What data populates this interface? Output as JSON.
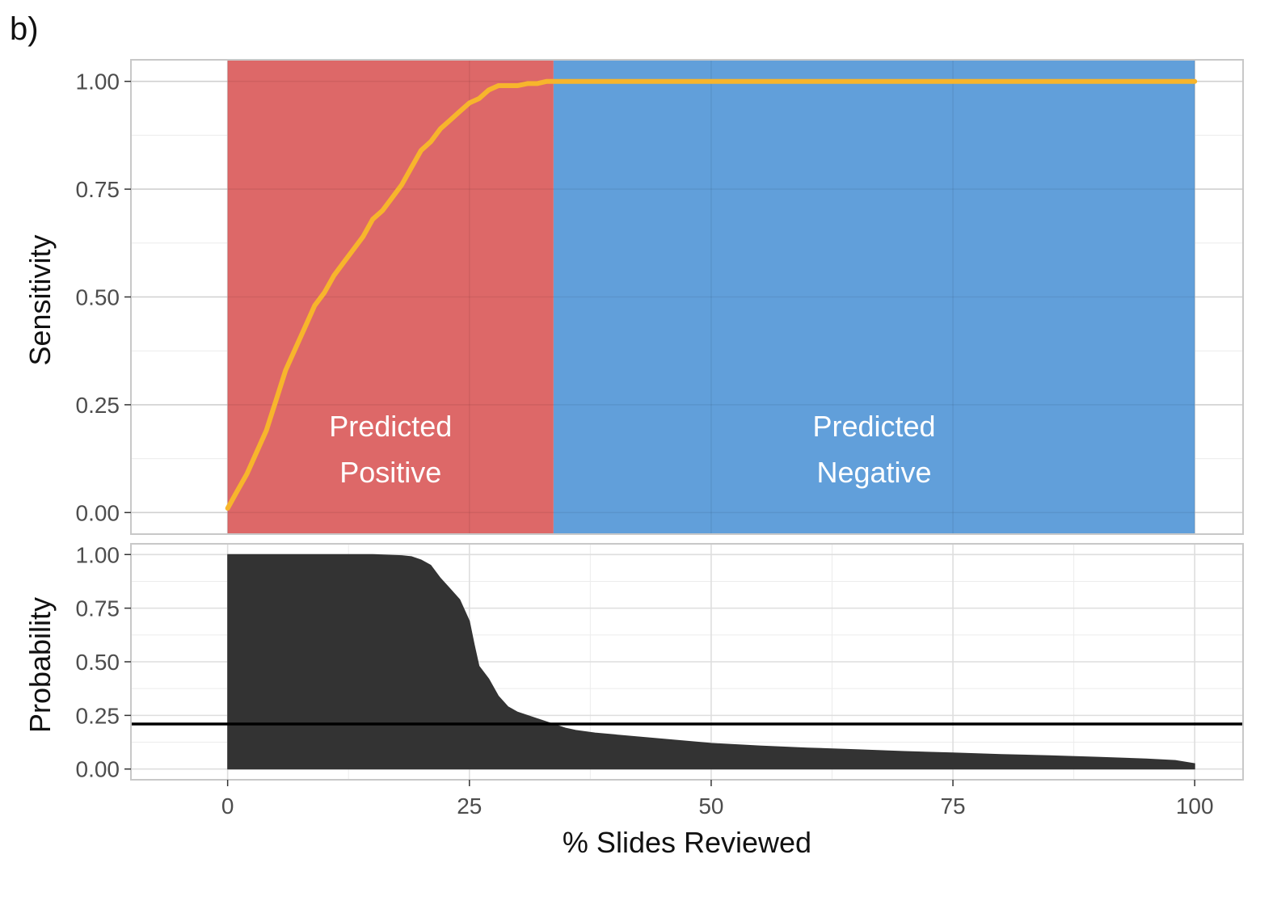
{
  "figure_label": "b)",
  "chart_data": [
    {
      "type": "line",
      "ylabel": "Sensitivity",
      "xlim": [
        -10,
        105
      ],
      "ylim": [
        -0.05,
        1.05
      ],
      "x_ticks": [
        0,
        25,
        50,
        75,
        100
      ],
      "y_ticks": [
        "0.00",
        "0.25",
        "0.50",
        "0.75",
        "1.00"
      ],
      "grid": true,
      "regions": [
        {
          "label": [
            "Predicted",
            "Positive"
          ],
          "x_start": 0,
          "x_end": 33.7,
          "color": "#dc6262"
        },
        {
          "label": [
            "Predicted",
            "Negative"
          ],
          "x_start": 33.7,
          "x_end": 100,
          "color": "#5b9bd8"
        }
      ],
      "series": [
        {
          "color": "#f7b52c",
          "x": [
            0,
            1,
            2,
            3,
            4,
            5,
            6,
            7,
            8,
            9,
            10,
            11,
            12,
            13,
            14,
            15,
            16,
            17,
            18,
            19,
            20,
            21,
            22,
            23,
            24,
            25,
            26,
            27,
            28,
            29,
            30,
            31,
            32,
            33,
            33.7,
            40,
            50,
            60,
            70,
            80,
            90,
            100
          ],
          "y": [
            0.01,
            0.05,
            0.09,
            0.14,
            0.19,
            0.26,
            0.33,
            0.38,
            0.43,
            0.48,
            0.51,
            0.55,
            0.58,
            0.61,
            0.64,
            0.68,
            0.7,
            0.73,
            0.76,
            0.8,
            0.84,
            0.86,
            0.89,
            0.91,
            0.93,
            0.95,
            0.96,
            0.98,
            0.99,
            0.99,
            0.99,
            0.995,
            0.995,
            1.0,
            1.0,
            1.0,
            1.0,
            1.0,
            1.0,
            1.0,
            1.0,
            1.0
          ]
        }
      ]
    },
    {
      "type": "area",
      "xlabel": "% Slides Reviewed",
      "ylabel": "Probability",
      "xlim": [
        -10,
        105
      ],
      "ylim": [
        -0.05,
        1.05
      ],
      "x_ticks": [
        "0",
        "25",
        "50",
        "75",
        "100"
      ],
      "y_ticks": [
        "0.00",
        "0.25",
        "0.50",
        "0.75",
        "1.00"
      ],
      "grid": true,
      "threshold": 0.21,
      "series": [
        {
          "color": "#333333",
          "x": [
            0,
            10,
            15,
            18,
            19,
            20,
            21,
            22,
            23,
            24,
            25,
            25.5,
            26,
            27,
            28,
            29,
            30,
            31,
            32,
            33,
            34,
            35,
            36,
            38,
            40,
            45,
            50,
            55,
            60,
            65,
            70,
            75,
            80,
            85,
            90,
            95,
            98,
            100
          ],
          "y": [
            1.0,
            1.0,
            1.0,
            0.995,
            0.99,
            0.975,
            0.95,
            0.89,
            0.84,
            0.79,
            0.69,
            0.58,
            0.48,
            0.42,
            0.34,
            0.29,
            0.265,
            0.25,
            0.235,
            0.22,
            0.205,
            0.19,
            0.18,
            0.168,
            0.16,
            0.14,
            0.12,
            0.108,
            0.098,
            0.09,
            0.082,
            0.075,
            0.068,
            0.062,
            0.055,
            0.047,
            0.04,
            0.025
          ]
        }
      ]
    }
  ]
}
